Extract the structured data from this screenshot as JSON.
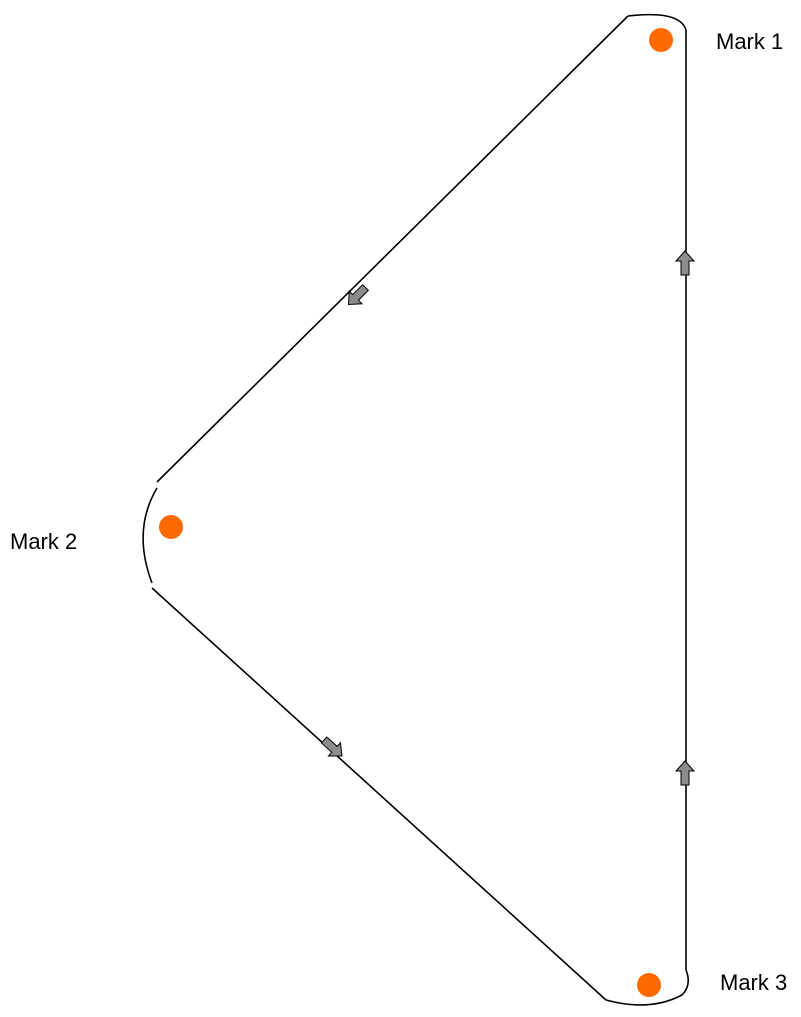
{
  "nodes": [
    {
      "label": "Mark 1"
    },
    {
      "label": "Mark 2"
    },
    {
      "label": "Mark 3"
    }
  ]
}
